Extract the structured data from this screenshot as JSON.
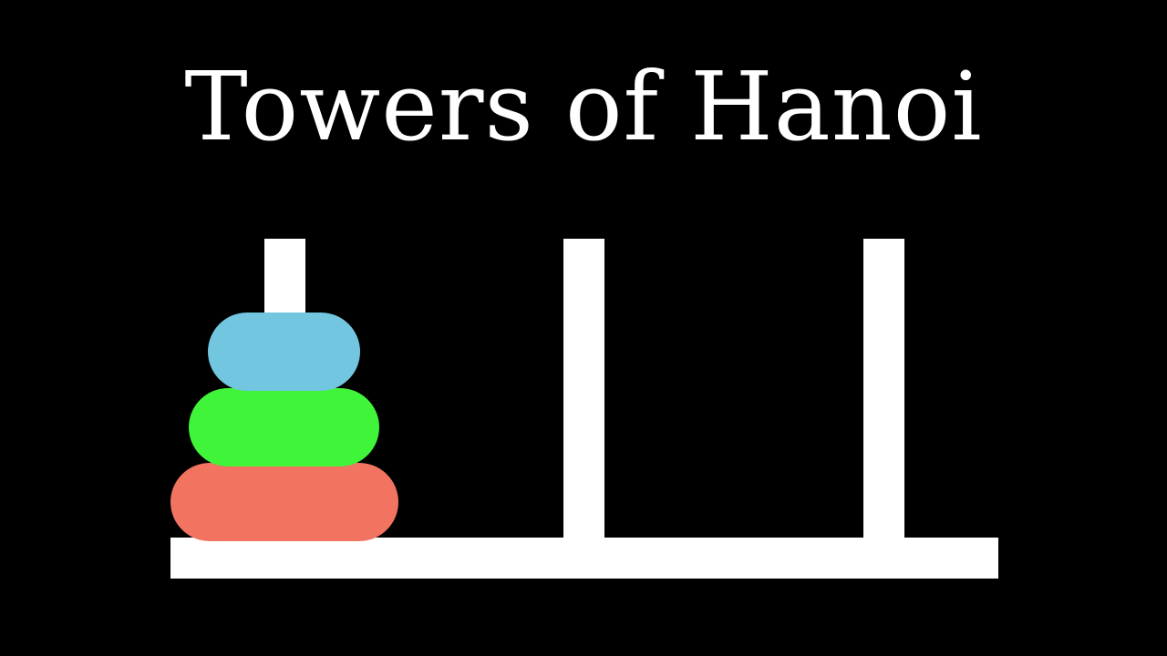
{
  "title": "Towers of Hanoi",
  "colors": {
    "background": "#000000",
    "structure": "#ffffff",
    "disk_small": "#72c6e0",
    "disk_medium": "#40f43a",
    "disk_large": "#f27360"
  },
  "pegs": [
    {
      "label": "peg-1",
      "disks": [
        "disk_small",
        "disk_medium",
        "disk_large"
      ]
    },
    {
      "label": "peg-2",
      "disks": []
    },
    {
      "label": "peg-3",
      "disks": []
    }
  ]
}
